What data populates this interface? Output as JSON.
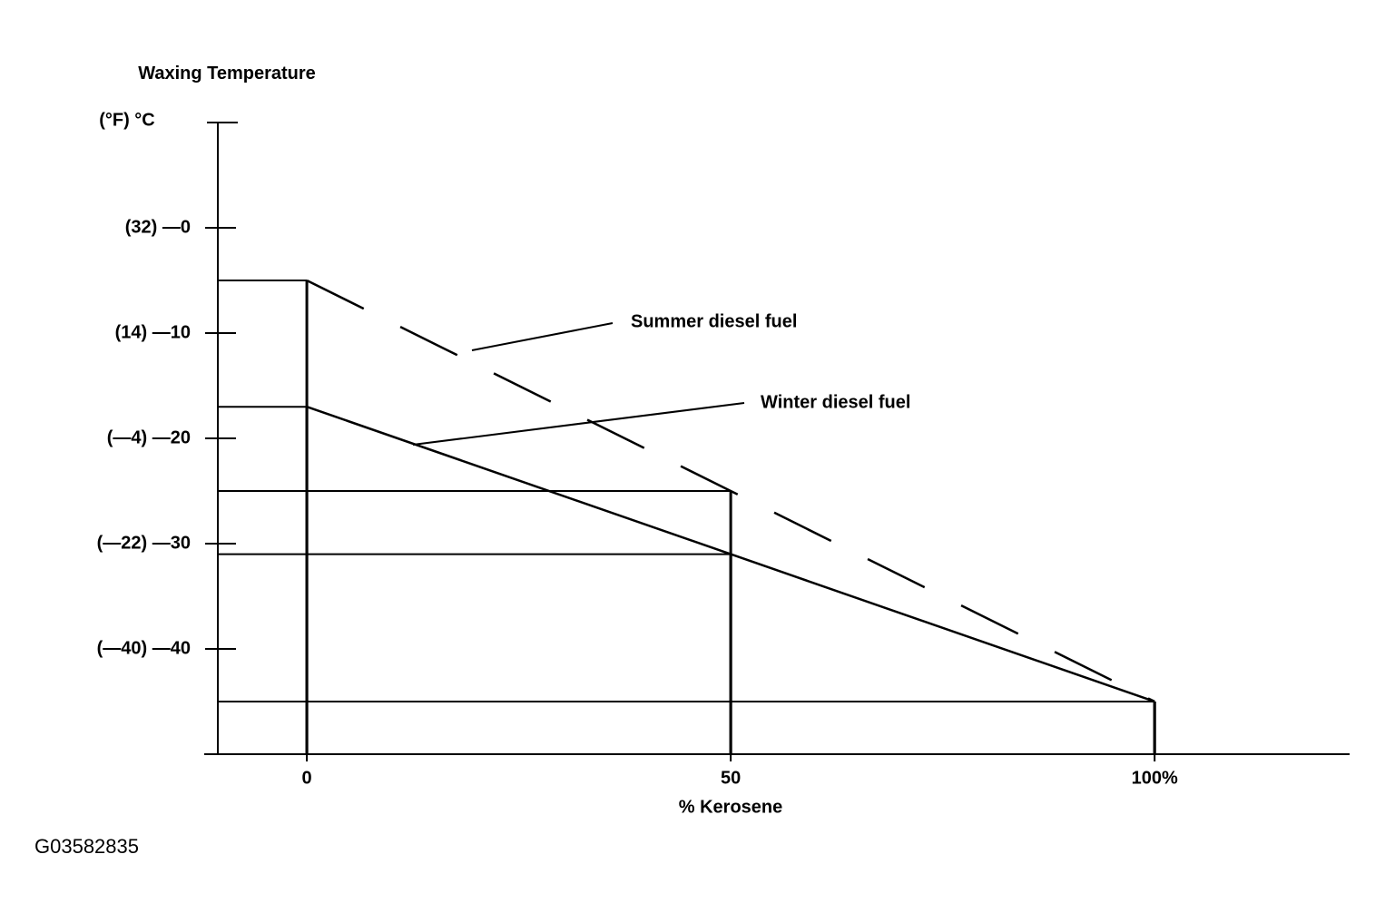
{
  "chart_data": {
    "type": "line",
    "y_label": "Waxing Temperature",
    "y_unit_label": "(°F) °C",
    "x_label": "% Kerosene",
    "figure_id": "G03582835",
    "x": [
      0,
      50,
      100
    ],
    "series": [
      {
        "name": "Summer diesel fuel",
        "color": "#000000",
        "dashed": true,
        "values": [
          -5,
          -25,
          -45
        ]
      },
      {
        "name": "Winter diesel fuel",
        "color": "#000000",
        "dashed": false,
        "values": [
          -17,
          -31,
          -45
        ]
      }
    ],
    "xlim": [
      -10.5,
      123
    ],
    "ylim": [
      -50,
      10
    ],
    "xticks": [
      0,
      50,
      {
        "value": 100,
        "label": "100%"
      }
    ],
    "yticks": [
      {
        "value": 0,
        "label": "(32) —0"
      },
      {
        "value": -10,
        "label": "(14) —10"
      },
      {
        "value": -20,
        "label": "(—4) —20"
      },
      {
        "value": -30,
        "label": "(—22) —30"
      },
      {
        "value": -40,
        "label": "(—40) —40"
      }
    ]
  }
}
